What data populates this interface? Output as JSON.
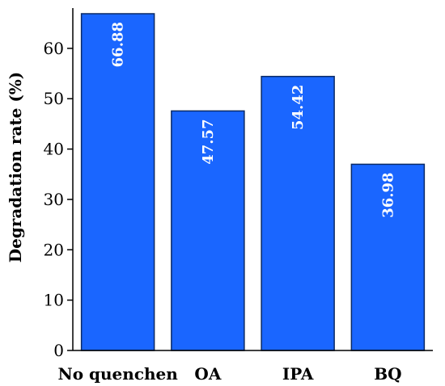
{
  "chart_data": {
    "type": "bar",
    "categories": [
      "No quenchen",
      "OA",
      "IPA",
      "BQ"
    ],
    "values": [
      66.88,
      47.57,
      54.42,
      36.98
    ],
    "value_labels": [
      "66.88",
      "47.57",
      "54.42",
      "36.98"
    ],
    "ylabel": "Degradation rate (%)",
    "xlabel": "",
    "ylim": [
      0,
      68
    ],
    "yticks": [
      0,
      10,
      20,
      30,
      40,
      50,
      60
    ],
    "grid": false,
    "bar_color": "#1a66ff",
    "bar_edge_color": "#0a2a66"
  }
}
